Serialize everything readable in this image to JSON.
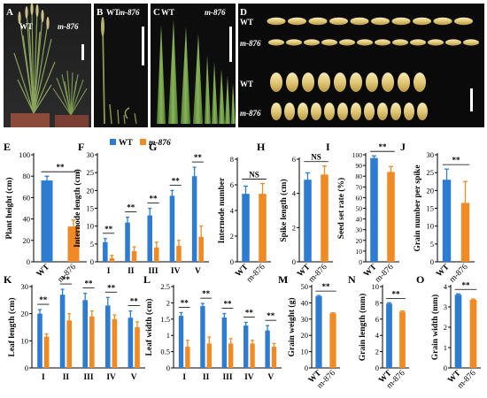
{
  "colors": {
    "wt": "#2E7CD1",
    "mutant": "#F08A24",
    "bg": "#ffffff"
  },
  "photo_panels": [
    {
      "letter": "A",
      "labels": [
        "WT",
        "m-876"
      ]
    },
    {
      "letter": "B",
      "labels": [
        "WT",
        "m-876"
      ]
    },
    {
      "letter": "C",
      "labels": [
        "WT",
        "m-876"
      ]
    },
    {
      "letter": "D",
      "labels": [
        "WT",
        "m-876",
        "WT",
        "m-876"
      ]
    }
  ],
  "chart_data": [
    {
      "panel": "E",
      "type": "bar",
      "ylabel": "Plant height (cm)",
      "ylim": [
        0,
        100
      ],
      "yticks": [
        0,
        20,
        40,
        60,
        80,
        100
      ],
      "categories": [
        "WT",
        "m-876"
      ],
      "values": [
        76,
        33
      ],
      "errors": [
        4,
        6
      ],
      "sig": [
        "**"
      ]
    },
    {
      "panel": "F",
      "type": "bar",
      "ylabel": "Internode length (cm)",
      "ylim": [
        0,
        30
      ],
      "yticks": [
        0,
        5,
        10,
        15,
        20,
        25,
        30
      ],
      "categories": [
        "I",
        "II",
        "III",
        "IV",
        "V"
      ],
      "legend": [
        "WT",
        "m-876"
      ],
      "series": [
        {
          "name": "WT",
          "values": [
            5.5,
            11,
            13,
            18.5,
            24
          ],
          "errors": [
            1,
            1.5,
            2,
            1.5,
            2.5
          ]
        },
        {
          "name": "m-876",
          "values": [
            1,
            3,
            4,
            4.5,
            7
          ],
          "errors": [
            0.8,
            1.2,
            1.5,
            1.5,
            3
          ]
        }
      ],
      "sig": [
        "**",
        "**",
        "**",
        "**",
        "**"
      ]
    },
    {
      "panel": "G",
      "type": "bar",
      "ylabel": "Internode number",
      "ylim": [
        0,
        8
      ],
      "yticks": [
        0,
        2,
        4,
        6,
        8
      ],
      "categories": [
        "WT",
        "m-876"
      ],
      "values": [
        5.3,
        5.3
      ],
      "errors": [
        0.6,
        0.8
      ],
      "sig": [
        "NS"
      ]
    },
    {
      "panel": "H",
      "type": "bar",
      "ylabel": "Spike length (cm)",
      "ylim": [
        0,
        6
      ],
      "yticks": [
        0,
        2,
        4,
        6
      ],
      "categories": [
        "WT",
        "m-876"
      ],
      "values": [
        4.8,
        5.1
      ],
      "errors": [
        0.4,
        0.5
      ],
      "sig": [
        "NS"
      ]
    },
    {
      "panel": "I",
      "type": "bar",
      "ylabel": "Seed set rate (%)",
      "ylim": [
        0,
        100
      ],
      "yticks": [
        0,
        10,
        20,
        30,
        40,
        50,
        60,
        70,
        80,
        90,
        100
      ],
      "categories": [
        "WT",
        "m-876"
      ],
      "values": [
        97,
        84
      ],
      "errors": [
        2,
        5
      ],
      "sig": [
        "**"
      ]
    },
    {
      "panel": "J",
      "type": "bar",
      "ylabel": "Grain number per spike",
      "ylim": [
        0,
        30
      ],
      "yticks": [
        0,
        5,
        10,
        15,
        20,
        25,
        30
      ],
      "categories": [
        "WT",
        "m-876"
      ],
      "values": [
        23,
        16.5
      ],
      "errors": [
        3,
        6
      ],
      "sig": [
        "**"
      ]
    },
    {
      "panel": "K",
      "type": "bar",
      "ylabel": "Leaf length (cm)",
      "ylim": [
        0,
        30
      ],
      "yticks": [
        0,
        10,
        20,
        30
      ],
      "categories": [
        "I",
        "II",
        "III",
        "IV",
        "V"
      ],
      "series": [
        {
          "name": "WT",
          "values": [
            20,
            27,
            25,
            23,
            18.5
          ],
          "errors": [
            1.5,
            2,
            2.5,
            3,
            2.5
          ]
        },
        {
          "name": "m-876",
          "values": [
            11.5,
            17.5,
            19,
            18,
            15
          ],
          "errors": [
            1,
            2.5,
            2,
            1.5,
            2
          ]
        }
      ],
      "sig": [
        "**",
        "**",
        "**",
        "**",
        "**"
      ]
    },
    {
      "panel": "L",
      "type": "bar",
      "ylabel": "Leaf width (cm)",
      "ylim": [
        0,
        2.5
      ],
      "yticks": [
        0,
        0.5,
        1,
        1.5,
        2,
        2.5
      ],
      "categories": [
        "I",
        "II",
        "III",
        "IV",
        "V"
      ],
      "series": [
        {
          "name": "WT",
          "values": [
            1.6,
            1.9,
            1.55,
            1.3,
            1.15
          ],
          "errors": [
            0.1,
            0.08,
            0.12,
            0.1,
            0.15
          ]
        },
        {
          "name": "m-876",
          "values": [
            0.65,
            0.75,
            0.75,
            0.75,
            0.65
          ],
          "errors": [
            0.2,
            0.2,
            0.15,
            0.1,
            0.1
          ]
        }
      ],
      "sig": [
        "**",
        "**",
        "**",
        "**",
        "**"
      ]
    },
    {
      "panel": "M",
      "type": "bar",
      "ylabel": "Grain weight (g)",
      "ylim": [
        0,
        50
      ],
      "yticks": [
        0,
        10,
        20,
        30,
        40,
        50
      ],
      "categories": [
        "WT",
        "m-876"
      ],
      "values": [
        44,
        33.5
      ],
      "errors": [
        0.5,
        0.4
      ],
      "sig": [
        "**"
      ]
    },
    {
      "panel": "N",
      "type": "bar",
      "ylabel": "Grain length (mm)",
      "ylim": [
        0,
        10
      ],
      "yticks": [
        0,
        2,
        4,
        6,
        8,
        10
      ],
      "categories": [
        "WT",
        "m-876"
      ],
      "values": [
        7.9,
        6.9
      ],
      "errors": [
        0.1,
        0.1
      ],
      "sig": [
        "**"
      ]
    },
    {
      "panel": "O",
      "type": "bar",
      "ylabel": "Grain width (mm)",
      "ylim": [
        0,
        4
      ],
      "yticks": [
        0,
        1,
        2,
        3,
        4
      ],
      "categories": [
        "WT",
        "m-876"
      ],
      "values": [
        3.6,
        3.35
      ],
      "errors": [
        0.04,
        0.04
      ],
      "sig": [
        "**"
      ]
    }
  ]
}
